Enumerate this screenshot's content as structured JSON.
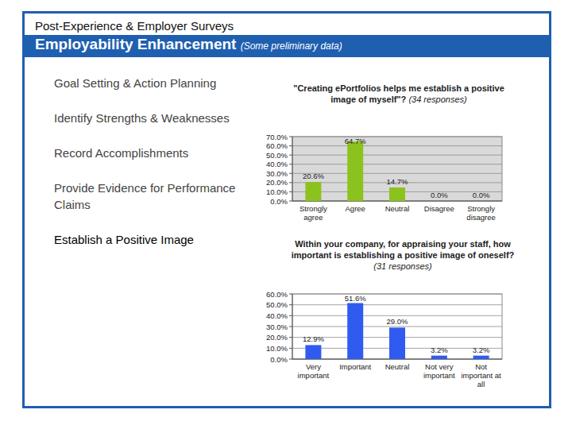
{
  "slide": {
    "kicker": "Post-Experience & Employer Surveys",
    "title": "Employability Enhancement",
    "note": "(Some preliminary data)",
    "items": [
      "Goal Setting & Action Planning",
      "Identify Strengths & Weaknesses",
      "Record Accomplishments",
      "Provide Evidence for Performance Claims",
      "Establish a Positive Image"
    ]
  },
  "chart_data": [
    {
      "type": "bar",
      "title": "\"Creating ePortfolios helps me establish a positive image of myself\"?",
      "subtitle": "(34 responses)",
      "categories": [
        "Strongly agree",
        "Agree",
        "Neutral",
        "Disagree",
        "Strongly disagree"
      ],
      "values": [
        20.6,
        64.7,
        14.7,
        0.0,
        0.0
      ],
      "value_labels": [
        "20.6%",
        "64.7%",
        "14.7%",
        "0.0%",
        "0.0%"
      ],
      "color": "#8cc21e",
      "ylim": [
        0,
        70
      ],
      "yticks": [
        {
          "value": 0,
          "label": "0.0%"
        },
        {
          "value": 10,
          "label": "10.0%"
        },
        {
          "value": 20,
          "label": "20.0%"
        },
        {
          "value": 30,
          "label": "30.0%"
        },
        {
          "value": 40,
          "label": "40.0%"
        },
        {
          "value": 50,
          "label": "50.0%"
        },
        {
          "value": 60,
          "label": "60.0%"
        },
        {
          "value": 70,
          "label": "70.0%"
        }
      ],
      "grid": true,
      "data_labels": true
    },
    {
      "type": "bar",
      "title": "Within your company, for appraising your staff, how important is establishing a positive image of oneself?",
      "subtitle": "(31 responses)",
      "categories": [
        "Very important",
        "Important",
        "Neutral",
        "Not very important",
        "Not important at all"
      ],
      "values": [
        12.9,
        51.6,
        29.0,
        3.2,
        3.2
      ],
      "value_labels": [
        "12.9%",
        "51.6%",
        "29.0%",
        "3.2%",
        "3.2%"
      ],
      "color": "#2f5bf0",
      "ylim": [
        0,
        60
      ],
      "yticks": [
        {
          "value": 0,
          "label": "0.0%"
        },
        {
          "value": 10,
          "label": "10.0%"
        },
        {
          "value": 20,
          "label": "20.0%"
        },
        {
          "value": 30,
          "label": "30.0%"
        },
        {
          "value": 40,
          "label": "40.0%"
        },
        {
          "value": 50,
          "label": "50.0%"
        },
        {
          "value": 60,
          "label": "60.0%"
        }
      ],
      "grid": true,
      "data_labels": true
    }
  ]
}
